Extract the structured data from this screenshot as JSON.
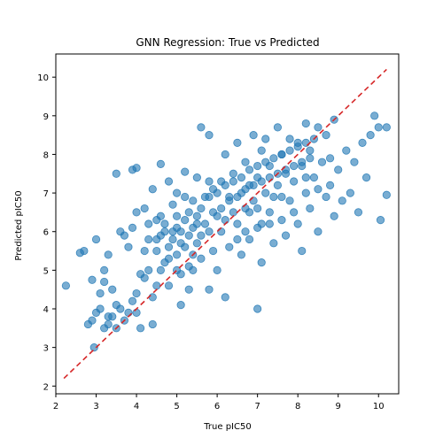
{
  "chart_data": {
    "type": "scatter",
    "title": "GNN Regression: True vs Predicted",
    "xlabel": "True pIC50",
    "ylabel": "Predicted pIC50",
    "xlim": [
      2.0,
      10.5
    ],
    "ylim": [
      1.8,
      10.6
    ],
    "x_ticks": [
      2,
      3,
      4,
      5,
      6,
      7,
      8,
      9,
      10
    ],
    "y_ticks": [
      2,
      3,
      4,
      5,
      6,
      7,
      8,
      9,
      10
    ],
    "grid": false,
    "legend": "none",
    "point_color": "#1f77b4",
    "point_alpha": 0.6,
    "reference_line": {
      "style": "dashed",
      "color": "#d62728",
      "from": [
        2.2,
        2.2
      ],
      "to": [
        10.2,
        10.2
      ]
    },
    "series": [
      {
        "points": [
          [
            2.25,
            4.6
          ],
          [
            2.6,
            5.45
          ],
          [
            2.7,
            5.5
          ],
          [
            2.9,
            4.75
          ],
          [
            2.8,
            3.6
          ],
          [
            2.9,
            3.7
          ],
          [
            2.95,
            3.0
          ],
          [
            3.0,
            5.8
          ],
          [
            3.1,
            4.4
          ],
          [
            3.2,
            5.0
          ],
          [
            3.2,
            4.7
          ],
          [
            3.3,
            5.4
          ],
          [
            3.3,
            3.6
          ],
          [
            3.4,
            3.8
          ],
          [
            3.4,
            4.5
          ],
          [
            3.5,
            3.5
          ],
          [
            3.5,
            7.5
          ],
          [
            3.6,
            6.0
          ],
          [
            3.7,
            5.9
          ],
          [
            3.8,
            3.9
          ],
          [
            3.8,
            5.6
          ],
          [
            3.9,
            6.1
          ],
          [
            3.9,
            7.6
          ],
          [
            4.0,
            4.4
          ],
          [
            4.0,
            6.5
          ],
          [
            4.0,
            7.65
          ],
          [
            4.1,
            3.5
          ],
          [
            4.1,
            4.9
          ],
          [
            4.2,
            5.5
          ],
          [
            4.2,
            6.6
          ],
          [
            4.3,
            5.0
          ],
          [
            4.3,
            6.2
          ],
          [
            4.4,
            7.1
          ],
          [
            4.5,
            5.8
          ],
          [
            4.5,
            4.6
          ],
          [
            4.6,
            6.4
          ],
          [
            4.6,
            7.75
          ],
          [
            4.7,
            5.2
          ],
          [
            4.7,
            6.0
          ],
          [
            4.8,
            5.6
          ],
          [
            4.8,
            7.3
          ],
          [
            4.9,
            6.7
          ],
          [
            5.0,
            5.0
          ],
          [
            5.0,
            6.1
          ],
          [
            5.0,
            7.0
          ],
          [
            5.1,
            5.7
          ],
          [
            5.1,
            4.1
          ],
          [
            5.2,
            6.3
          ],
          [
            5.2,
            7.55
          ],
          [
            5.3,
            5.9
          ],
          [
            5.3,
            4.5
          ],
          [
            5.4,
            6.8
          ],
          [
            5.4,
            5.4
          ],
          [
            5.5,
            6.2
          ],
          [
            5.5,
            7.4
          ],
          [
            5.6,
            5.3
          ],
          [
            5.6,
            8.7
          ],
          [
            5.7,
            6.9
          ],
          [
            5.8,
            4.5
          ],
          [
            5.8,
            6.0
          ],
          [
            5.8,
            8.5
          ],
          [
            5.9,
            7.1
          ],
          [
            6.0,
            6.4
          ],
          [
            6.0,
            5.0
          ],
          [
            6.1,
            7.3
          ],
          [
            6.2,
            8.0
          ],
          [
            6.2,
            4.3
          ],
          [
            6.3,
            6.9
          ],
          [
            6.3,
            5.6
          ],
          [
            6.4,
            7.5
          ],
          [
            6.5,
            6.2
          ],
          [
            6.5,
            8.3
          ],
          [
            6.6,
            7.0
          ],
          [
            6.6,
            5.4
          ],
          [
            6.7,
            7.8
          ],
          [
            6.7,
            6.6
          ],
          [
            6.8,
            7.2
          ],
          [
            6.8,
            5.8
          ],
          [
            6.9,
            8.5
          ],
          [
            6.9,
            6.8
          ],
          [
            7.0,
            4.0
          ],
          [
            7.0,
            7.4
          ],
          [
            7.0,
            6.1
          ],
          [
            7.1,
            8.1
          ],
          [
            7.1,
            5.2
          ],
          [
            7.2,
            7.0
          ],
          [
            7.2,
            8.4
          ],
          [
            7.3,
            6.5
          ],
          [
            7.3,
            7.7
          ],
          [
            7.4,
            6.9
          ],
          [
            7.4,
            5.7
          ],
          [
            7.5,
            8.7
          ],
          [
            7.5,
            7.2
          ],
          [
            7.6,
            6.3
          ],
          [
            7.6,
            8.0
          ],
          [
            7.7,
            7.5
          ],
          [
            7.7,
            5.9
          ],
          [
            7.8,
            8.4
          ],
          [
            7.8,
            6.8
          ],
          [
            7.9,
            7.3
          ],
          [
            8.0,
            8.3
          ],
          [
            8.0,
            6.2
          ],
          [
            8.1,
            7.7
          ],
          [
            8.1,
            5.5
          ],
          [
            8.2,
            8.8
          ],
          [
            8.2,
            7.0
          ],
          [
            8.3,
            6.6
          ],
          [
            8.3,
            8.1
          ],
          [
            8.4,
            7.4
          ],
          [
            8.5,
            8.7
          ],
          [
            8.5,
            6.0
          ],
          [
            8.6,
            7.8
          ],
          [
            8.7,
            6.9
          ],
          [
            8.7,
            8.5
          ],
          [
            8.8,
            7.2
          ],
          [
            8.9,
            8.9
          ],
          [
            8.9,
            6.4
          ],
          [
            9.0,
            7.6
          ],
          [
            9.1,
            6.8
          ],
          [
            9.2,
            8.1
          ],
          [
            9.3,
            7.0
          ],
          [
            9.4,
            7.8
          ],
          [
            9.5,
            6.5
          ],
          [
            9.6,
            8.3
          ],
          [
            9.7,
            7.4
          ],
          [
            9.8,
            8.5
          ],
          [
            9.9,
            9.0
          ],
          [
            10.0,
            8.7
          ],
          [
            10.05,
            6.3
          ],
          [
            10.2,
            8.7
          ],
          [
            10.2,
            6.95
          ],
          [
            4.5,
            5.5
          ],
          [
            4.6,
            5.9
          ],
          [
            4.7,
            6.2
          ],
          [
            4.8,
            5.3
          ],
          [
            4.9,
            5.8
          ],
          [
            5.0,
            6.4
          ],
          [
            5.1,
            6.0
          ],
          [
            5.2,
            5.6
          ],
          [
            5.3,
            6.5
          ],
          [
            5.4,
            6.1
          ],
          [
            5.5,
            5.7
          ],
          [
            5.6,
            6.6
          ],
          [
            5.7,
            6.2
          ],
          [
            5.8,
            6.9
          ],
          [
            5.9,
            6.5
          ],
          [
            6.0,
            7.0
          ],
          [
            6.1,
            6.6
          ],
          [
            6.2,
            7.2
          ],
          [
            6.3,
            6.8
          ],
          [
            6.4,
            7.3
          ],
          [
            6.5,
            6.9
          ],
          [
            6.6,
            7.4
          ],
          [
            6.7,
            7.1
          ],
          [
            6.8,
            7.6
          ],
          [
            6.9,
            7.2
          ],
          [
            7.0,
            7.7
          ],
          [
            7.1,
            7.3
          ],
          [
            7.2,
            7.8
          ],
          [
            7.3,
            7.4
          ],
          [
            7.4,
            7.9
          ],
          [
            7.5,
            7.5
          ],
          [
            7.6,
            8.0
          ],
          [
            7.7,
            7.6
          ],
          [
            7.8,
            8.1
          ],
          [
            7.9,
            7.7
          ],
          [
            8.0,
            8.2
          ],
          [
            8.1,
            7.8
          ],
          [
            8.2,
            8.3
          ],
          [
            8.3,
            7.9
          ],
          [
            8.4,
            8.4
          ],
          [
            4.3,
            5.8
          ],
          [
            4.5,
            6.3
          ],
          [
            4.9,
            6.0
          ],
          [
            5.2,
            6.9
          ],
          [
            5.5,
            6.4
          ],
          [
            5.8,
            7.3
          ],
          [
            6.1,
            6.0
          ],
          [
            6.4,
            6.5
          ],
          [
            6.7,
            6.0
          ],
          [
            7.0,
            6.6
          ],
          [
            7.3,
            6.2
          ],
          [
            7.6,
            6.9
          ],
          [
            7.9,
            6.5
          ],
          [
            8.2,
            7.4
          ],
          [
            8.5,
            7.1
          ],
          [
            8.8,
            7.9
          ],
          [
            5.0,
            5.4
          ],
          [
            5.3,
            5.1
          ],
          [
            5.6,
            5.9
          ],
          [
            5.9,
            5.5
          ],
          [
            6.2,
            6.3
          ],
          [
            6.5,
            5.8
          ],
          [
            6.8,
            6.5
          ],
          [
            7.1,
            6.2
          ],
          [
            3.6,
            4.0
          ],
          [
            3.9,
            4.2
          ],
          [
            4.2,
            4.8
          ],
          [
            4.4,
            4.3
          ],
          [
            4.6,
            5.0
          ],
          [
            4.8,
            4.6
          ],
          [
            5.1,
            4.9
          ],
          [
            5.4,
            5.0
          ],
          [
            3.1,
            4.0
          ],
          [
            3.3,
            3.8
          ],
          [
            3.5,
            4.1
          ],
          [
            3.7,
            3.7
          ],
          [
            4.0,
            3.9
          ],
          [
            4.4,
            3.6
          ],
          [
            3.2,
            3.5
          ],
          [
            3.0,
            3.9
          ]
        ]
      }
    ]
  }
}
